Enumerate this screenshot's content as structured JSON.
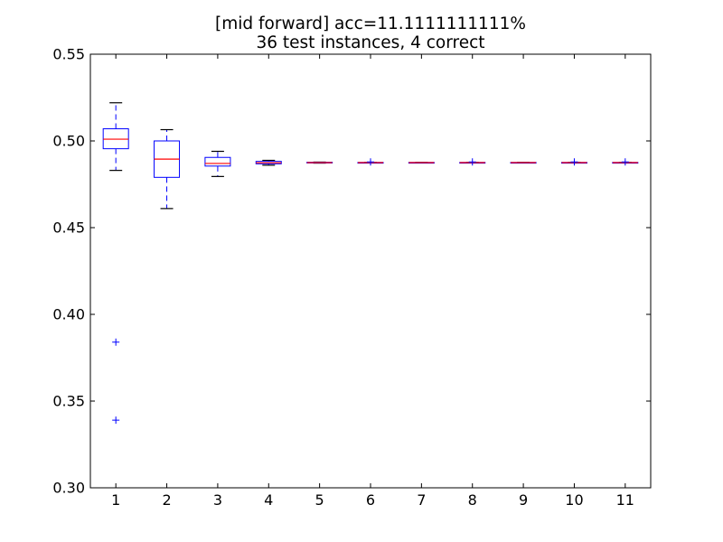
{
  "chart_data": {
    "type": "box",
    "title": "[mid forward] acc=11.1111111111%",
    "subtitle": "36 test instances, 4 correct",
    "xlabel": "",
    "ylabel": "",
    "categories": [
      "1",
      "2",
      "3",
      "4",
      "5",
      "6",
      "7",
      "8",
      "9",
      "10",
      "11"
    ],
    "ylim": [
      0.3,
      0.55
    ],
    "yticks": [
      "0.30",
      "0.35",
      "0.40",
      "0.45",
      "0.50",
      "0.55"
    ],
    "grid": false,
    "legend": "none",
    "colors": {
      "box": "#0000ff",
      "median": "#ff0000",
      "whisker": "#0000ff",
      "cap": "#000000",
      "outlier": "#0000ff"
    },
    "boxes": [
      {
        "category": "1",
        "whisker_low": 0.483,
        "q1": 0.4955,
        "median": 0.501,
        "q3": 0.507,
        "whisker_high": 0.522,
        "outliers": [
          0.384,
          0.339
        ]
      },
      {
        "category": "2",
        "whisker_low": 0.461,
        "q1": 0.479,
        "median": 0.4895,
        "q3": 0.5,
        "whisker_high": 0.5065,
        "outliers": []
      },
      {
        "category": "3",
        "whisker_low": 0.4795,
        "q1": 0.4855,
        "median": 0.487,
        "q3": 0.4905,
        "whisker_high": 0.494,
        "outliers": []
      },
      {
        "category": "4",
        "whisker_low": 0.486,
        "q1": 0.4868,
        "median": 0.4874,
        "q3": 0.4882,
        "whisker_high": 0.4888,
        "outliers": []
      },
      {
        "category": "5",
        "whisker_low": 0.4872,
        "q1": 0.4873,
        "median": 0.4875,
        "q3": 0.4877,
        "whisker_high": 0.4878,
        "outliers": []
      },
      {
        "category": "6",
        "whisker_low": 0.4874,
        "q1": 0.4874,
        "median": 0.4875,
        "q3": 0.4876,
        "whisker_high": 0.4876,
        "outliers": [
          0.4879
        ]
      },
      {
        "category": "7",
        "whisker_low": 0.4874,
        "q1": 0.4874,
        "median": 0.4875,
        "q3": 0.4876,
        "whisker_high": 0.4876,
        "outliers": []
      },
      {
        "category": "8",
        "whisker_low": 0.4874,
        "q1": 0.4874,
        "median": 0.4875,
        "q3": 0.4876,
        "whisker_high": 0.4876,
        "outliers": [
          0.4879
        ]
      },
      {
        "category": "9",
        "whisker_low": 0.4874,
        "q1": 0.4874,
        "median": 0.4875,
        "q3": 0.4876,
        "whisker_high": 0.4876,
        "outliers": []
      },
      {
        "category": "10",
        "whisker_low": 0.4874,
        "q1": 0.4874,
        "median": 0.4875,
        "q3": 0.4876,
        "whisker_high": 0.4876,
        "outliers": [
          0.4879
        ]
      },
      {
        "category": "11",
        "whisker_low": 0.4874,
        "q1": 0.4874,
        "median": 0.4875,
        "q3": 0.4876,
        "whisker_high": 0.4876,
        "outliers": [
          0.4879
        ]
      }
    ]
  }
}
